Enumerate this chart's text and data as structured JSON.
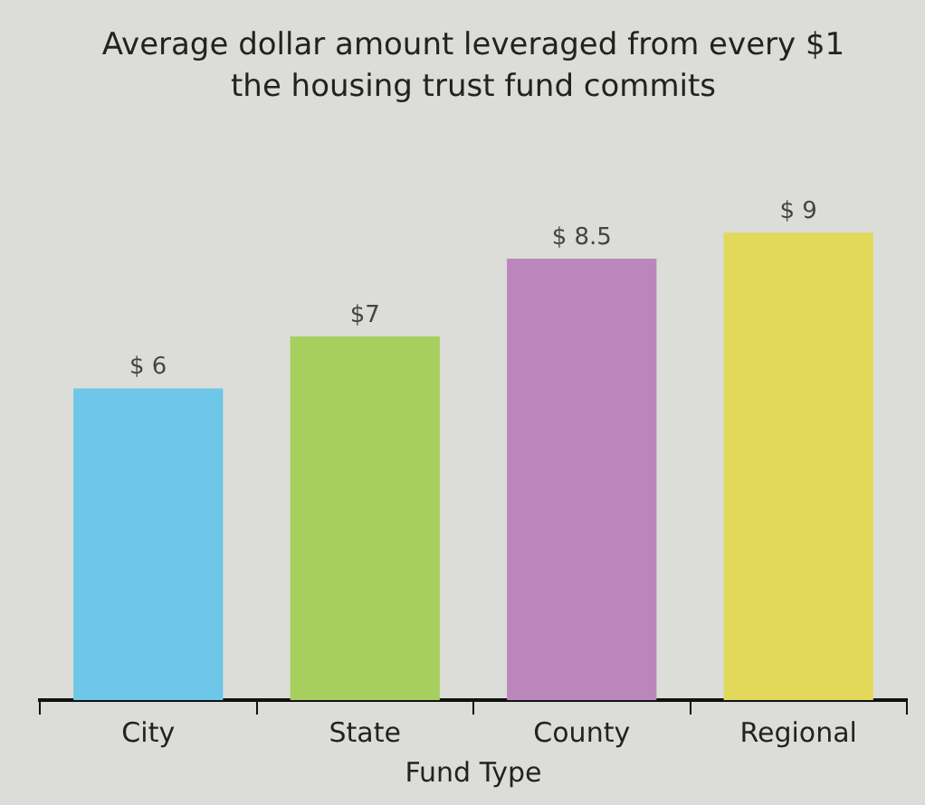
{
  "chart_data": {
    "type": "bar",
    "title": "Average dollar amount leveraged from every $1 the housing trust fund commits",
    "xlabel": "Fund Type",
    "categories": [
      "City",
      "State",
      "County",
      "Regional"
    ],
    "values": [
      6,
      7,
      8.5,
      9
    ],
    "colors": [
      "#6ec6e8",
      "#a6cf5e",
      "#bb86bc",
      "#e2d85a"
    ],
    "value_labels": [
      "$ 6",
      "$7",
      "$ 8.5",
      "$ 9"
    ],
    "legend": false
  }
}
